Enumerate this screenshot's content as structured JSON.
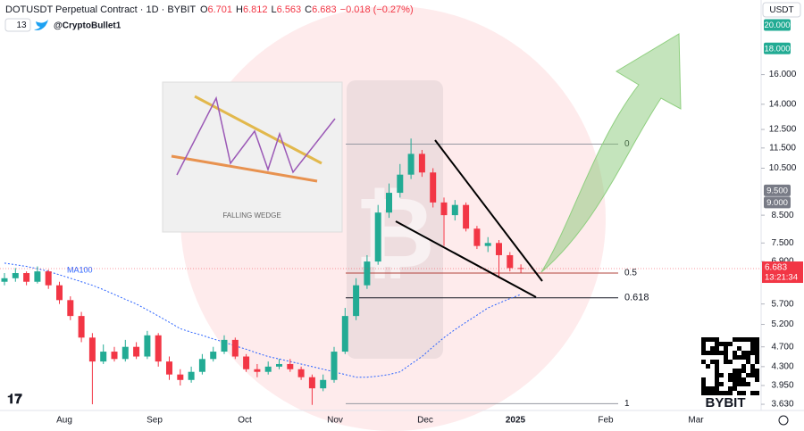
{
  "chart_data": {
    "type": "candlestick",
    "header": {
      "symbol": "DOTUSDT Perpetual Contract · 1D · BYBIT",
      "o_label": "O",
      "o": "6.701",
      "h_label": "H",
      "h": "6.812",
      "l_label": "L",
      "l": "6.563",
      "c_label": "C",
      "c": "6.683",
      "change": "−0.018 (−0.27%)",
      "indicators": "13",
      "author": "@CryptoBullet1"
    },
    "currency": "USDT",
    "inset_caption": "FALLING WEDGE",
    "ylim": [
      3.53,
      22.38
    ],
    "log_scale": true,
    "grid": false,
    "yticks": [
      {
        "value": 3.63,
        "label": "3.630"
      },
      {
        "value": 3.95,
        "label": "3.950"
      },
      {
        "value": 4.3,
        "label": "4.300"
      },
      {
        "value": 4.7,
        "label": "4.700"
      },
      {
        "value": 5.2,
        "label": "5.200"
      },
      {
        "value": 5.7,
        "label": "5.700"
      },
      {
        "value": 6.9,
        "label": "6.900"
      },
      {
        "value": 7.5,
        "label": "7.500"
      },
      {
        "value": 8.5,
        "label": "8.500"
      },
      {
        "value": 10.5,
        "label": "10.500"
      },
      {
        "value": 11.5,
        "label": "11.500"
      },
      {
        "value": 12.5,
        "label": "12.500"
      },
      {
        "value": 14,
        "label": "14.000"
      },
      {
        "value": 16,
        "label": "16.000"
      }
    ],
    "price_labels": [
      {
        "value": 20,
        "label": "20.000",
        "color": "#22ab94"
      },
      {
        "value": 18,
        "label": "18.000",
        "color": "#22ab94"
      },
      {
        "value": 9.5,
        "label": "9.500",
        "color": "#787b86"
      },
      {
        "value": 9,
        "label": "9.000",
        "color": "#787b86"
      }
    ],
    "last_price": {
      "value": 6.683,
      "label": "6.683",
      "countdown": "13:21:34",
      "color": "#f23645"
    },
    "xticks": [
      "Aug",
      "Sep",
      "Oct",
      "Nov",
      "Dec",
      "2025",
      "Feb",
      "Mar"
    ],
    "up_color": "#22ab94",
    "down_color": "#f23645",
    "open": [
      6.3,
      6.4,
      6.55,
      6.3,
      6.6,
      6.2,
      5.8,
      5.4,
      4.9,
      4.4,
      4.6,
      4.45,
      4.7,
      4.5,
      4.95,
      4.4,
      4.15,
      4.05,
      4.2,
      4.45,
      4.6,
      4.85,
      4.5,
      4.25,
      4.2,
      4.3,
      4.35,
      4.25,
      4.1,
      3.9,
      4.05,
      4.6,
      5.4,
      6.2,
      6.9,
      8.6,
      9.4,
      10.2,
      11.2,
      10.3,
      9.0,
      8.5,
      8.9,
      8.0,
      7.4,
      7.5,
      7.1,
      6.701
    ],
    "high": [
      6.55,
      6.7,
      6.6,
      6.75,
      6.65,
      6.3,
      5.9,
      5.5,
      5.0,
      4.75,
      4.7,
      4.85,
      4.8,
      5.05,
      5.0,
      4.5,
      4.25,
      4.3,
      4.55,
      4.7,
      4.95,
      4.9,
      4.55,
      4.35,
      4.4,
      4.45,
      4.45,
      4.3,
      4.15,
      4.15,
      4.7,
      5.6,
      6.4,
      7.1,
      8.9,
      9.8,
      10.7,
      12.0,
      11.4,
      10.5,
      9.2,
      9.1,
      9.0,
      8.1,
      7.7,
      7.6,
      7.2,
      6.812
    ],
    "low": [
      6.2,
      6.3,
      6.2,
      6.25,
      6.1,
      5.7,
      5.3,
      4.8,
      3.63,
      4.35,
      4.4,
      4.4,
      4.45,
      4.45,
      4.3,
      4.05,
      3.95,
      4.0,
      4.15,
      4.4,
      4.55,
      4.45,
      4.2,
      4.1,
      4.15,
      4.25,
      4.2,
      4.05,
      3.62,
      3.85,
      4.0,
      4.55,
      5.3,
      6.1,
      6.8,
      8.4,
      9.2,
      10.0,
      10.1,
      8.8,
      7.4,
      8.3,
      7.9,
      7.3,
      7.2,
      6.4,
      6.6,
      6.563
    ],
    "close": [
      6.4,
      6.55,
      6.3,
      6.6,
      6.2,
      5.8,
      5.4,
      4.9,
      4.4,
      4.6,
      4.45,
      4.7,
      4.5,
      4.95,
      4.4,
      4.15,
      4.05,
      4.2,
      4.45,
      4.6,
      4.85,
      4.5,
      4.25,
      4.2,
      4.3,
      4.35,
      4.25,
      4.1,
      3.9,
      4.05,
      4.6,
      5.4,
      6.2,
      6.9,
      8.6,
      9.4,
      10.2,
      11.2,
      10.3,
      9.0,
      8.5,
      8.9,
      8.0,
      7.4,
      7.5,
      7.1,
      6.7,
      6.683
    ],
    "ma": {
      "name": "MA100",
      "color": "#2962ff",
      "values": [
        6.85,
        6.8,
        6.75,
        6.68,
        6.6,
        6.5,
        6.4,
        6.3,
        6.2,
        6.08,
        5.95,
        5.82,
        5.7,
        5.55,
        5.4,
        5.25,
        5.1,
        5.02,
        4.95,
        4.87,
        4.8,
        4.72,
        4.65,
        4.57,
        4.5,
        4.45,
        4.4,
        4.35,
        4.3,
        4.25,
        4.2,
        4.15,
        4.1,
        4.1,
        4.12,
        4.15,
        4.2,
        4.35,
        4.5,
        4.7,
        4.9,
        5.08,
        5.25,
        5.42,
        5.6,
        5.72,
        5.84,
        5.95
      ]
    },
    "fib_levels": [
      {
        "label": "0",
        "value": 11.7,
        "color": "#9598a1"
      },
      {
        "label": "0.5",
        "value": 6.55,
        "color": "#b2443c"
      },
      {
        "label": "0.618",
        "value": 5.86,
        "color": "#131722"
      },
      {
        "label": "1",
        "value": 3.64,
        "color": "#9598a1"
      }
    ],
    "brand": "BYBIT"
  }
}
